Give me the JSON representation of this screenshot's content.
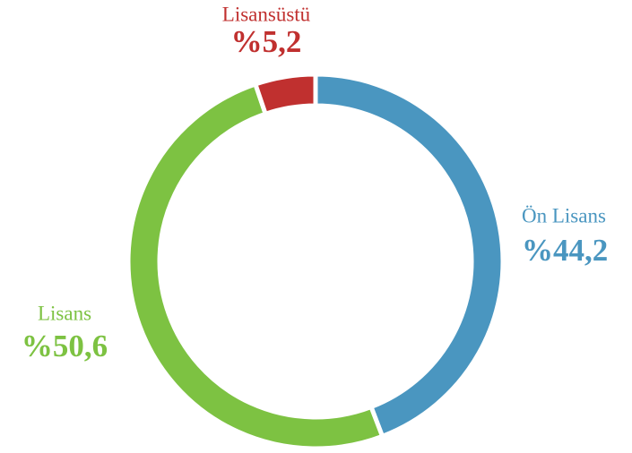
{
  "chart_data": {
    "type": "donut",
    "categories": [
      "Ön Lisans",
      "Lisans",
      "Lisansüstü"
    ],
    "values": [
      44.2,
      50.6,
      5.2
    ],
    "value_labels": [
      "%44,2",
      "%50,6",
      "%5,2"
    ],
    "colors": [
      "#4a96c0",
      "#7dc242",
      "#c0302f"
    ]
  }
}
